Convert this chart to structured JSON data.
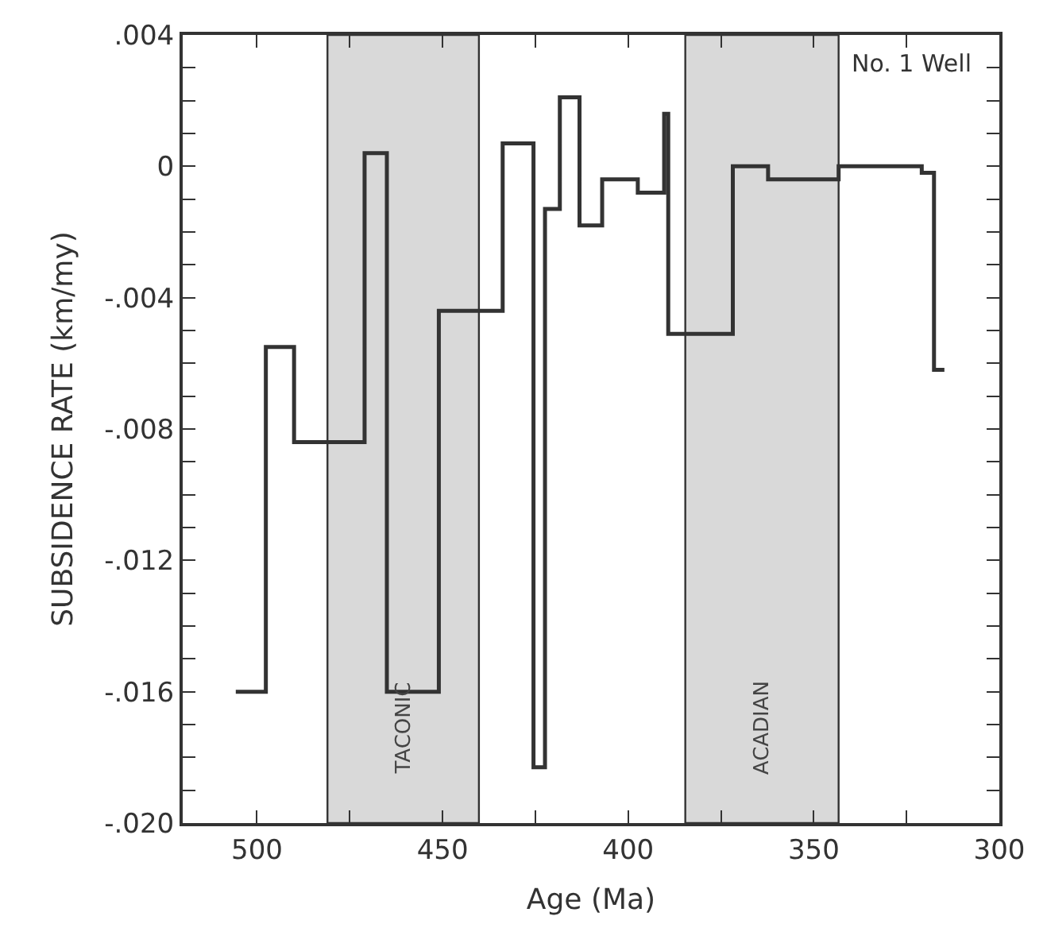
{
  "chart_data": {
    "type": "step",
    "xlabel": "Age (Ma)",
    "ylabel": "SUBSIDENCE RATE (km/my)",
    "x": [
      505.7,
      497.6,
      490,
      471,
      465,
      451,
      433.8,
      425.5,
      422.4,
      418.4,
      413.1,
      407,
      397.4,
      390.3,
      389.2,
      371.8,
      362.3,
      343.3,
      320.9,
      317.6,
      314.8
    ],
    "series": [
      {
        "color": "#333333",
        "values": [
          -0.016,
          -0.0055,
          -0.0084,
          0.0004,
          -0.016,
          -0.0044,
          0.0007,
          -0.0183,
          -0.0013,
          0.0021,
          -0.0018,
          -0.0004,
          -0.0008,
          0.0016,
          -0.0051,
          0.0,
          -0.0004,
          0.0,
          -0.0002,
          -0.0062,
          -0.0062
        ]
      }
    ],
    "xlim": [
      520,
      300
    ],
    "xticks": [
      500,
      {
        "value": 475,
        "label": null
      },
      450,
      {
        "value": 425,
        "label": null
      },
      400,
      {
        "value": 375,
        "label": null
      },
      350,
      {
        "value": 325,
        "label": null
      },
      300
    ],
    "ylim": [
      -0.02,
      0.004
    ],
    "yticks": [
      {
        "value": 0.004,
        "label": ".004"
      },
      {
        "value": 0.003,
        "label": null
      },
      {
        "value": 0.002,
        "label": null
      },
      {
        "value": 0.001,
        "label": null
      },
      0,
      {
        "value": -0.001,
        "label": null
      },
      {
        "value": -0.002,
        "label": null
      },
      {
        "value": -0.003,
        "label": null
      },
      {
        "value": -0.004,
        "label": "-.004"
      },
      {
        "value": -0.005,
        "label": null
      },
      {
        "value": -0.006,
        "label": null
      },
      {
        "value": -0.007,
        "label": null
      },
      {
        "value": -0.008,
        "label": "-.008"
      },
      {
        "value": -0.009,
        "label": null
      },
      {
        "value": -0.01,
        "label": null
      },
      {
        "value": -0.011,
        "label": null
      },
      {
        "value": -0.012,
        "label": "-.012"
      },
      {
        "value": -0.013,
        "label": null
      },
      {
        "value": -0.014,
        "label": null
      },
      {
        "value": -0.015,
        "label": null
      },
      {
        "value": -0.016,
        "label": "-.016"
      },
      {
        "value": -0.017,
        "label": null
      },
      {
        "value": -0.018,
        "label": null
      },
      {
        "value": -0.019,
        "label": null
      },
      {
        "value": -0.02,
        "label": "-.020"
      }
    ],
    "bands": [
      {
        "axis": "x",
        "from": 481,
        "to": 440.2,
        "label": "TACONIC",
        "color": "#d9d9d9"
      },
      {
        "axis": "x",
        "from": 384.6,
        "to": 343.3,
        "label": "ACADIAN",
        "color": "#d9d9d9"
      }
    ],
    "annotations": [
      "No. 1 Well"
    ],
    "grid": false,
    "legend": false,
    "marker": "none",
    "line_style": "solid"
  }
}
